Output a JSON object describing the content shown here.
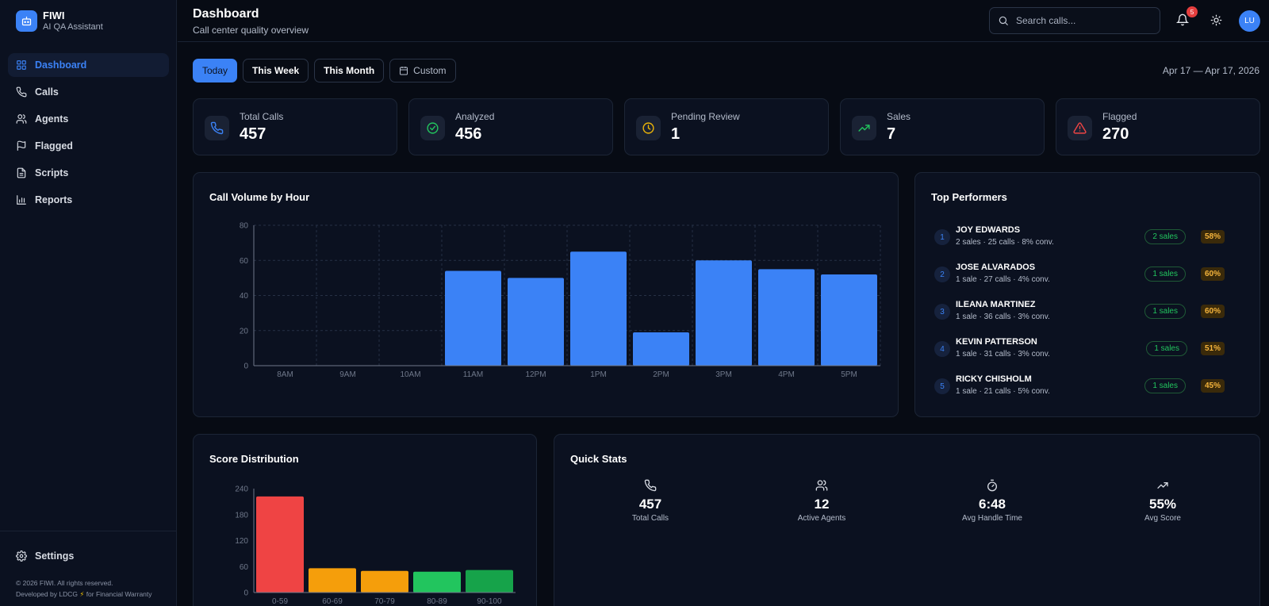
{
  "brand": {
    "name": "FIWI",
    "subtitle": "AI QA Assistant"
  },
  "sidebar": {
    "items": [
      {
        "label": "Dashboard",
        "icon": "grid-icon",
        "active": true
      },
      {
        "label": "Calls",
        "icon": "phone-icon"
      },
      {
        "label": "Agents",
        "icon": "users-icon"
      },
      {
        "label": "Flagged",
        "icon": "flag-icon"
      },
      {
        "label": "Scripts",
        "icon": "document-icon"
      },
      {
        "label": "Reports",
        "icon": "bar-chart-icon"
      }
    ],
    "settings_label": "Settings",
    "footer_copyright": "© 2026 FIWI. All rights reserved.",
    "footer_dev_prefix": "Developed by LDCG",
    "footer_dev_suffix": "for Financial Warranty"
  },
  "header": {
    "title": "Dashboard",
    "subtitle": "Call center quality overview",
    "search_placeholder": "Search calls...",
    "notification_count": "5",
    "avatar_initials": "LU"
  },
  "filters": {
    "buttons": [
      "Today",
      "This Week",
      "This Month",
      "Custom"
    ],
    "active": "Today",
    "date_range": "Apr 17 — Apr 17, 2026"
  },
  "stats": [
    {
      "label": "Total Calls",
      "value": "457",
      "icon": "phone-icon",
      "color": "#3b82f6"
    },
    {
      "label": "Analyzed",
      "value": "456",
      "icon": "check-circle-icon",
      "color": "#22c55e"
    },
    {
      "label": "Pending Review",
      "value": "1",
      "icon": "clock-icon",
      "color": "#eab308"
    },
    {
      "label": "Sales",
      "value": "7",
      "icon": "trending-up-icon",
      "color": "#22c55e"
    },
    {
      "label": "Flagged",
      "value": "270",
      "icon": "alert-triangle-icon",
      "color": "#ef4444"
    }
  ],
  "call_volume": {
    "title": "Call Volume by Hour",
    "chart_data": {
      "type": "bar",
      "categories": [
        "8AM",
        "9AM",
        "10AM",
        "11AM",
        "12PM",
        "1PM",
        "2PM",
        "3PM",
        "4PM",
        "5PM"
      ],
      "values": [
        0,
        0,
        0,
        54,
        50,
        65,
        19,
        60,
        55,
        52
      ],
      "yticks": [
        0,
        20,
        40,
        60,
        80
      ],
      "ylim": [
        0,
        80
      ],
      "grid": true,
      "color": "#3b82f6"
    }
  },
  "top_performers": {
    "title": "Top Performers",
    "rows": [
      {
        "rank": "1",
        "name": "JOY EDWARDS",
        "meta": "2 sales · 25 calls · 8% conv.",
        "sales": "2 sales",
        "pct": "58%"
      },
      {
        "rank": "2",
        "name": "JOSE ALVARADOS",
        "meta": "1 sale · 27 calls · 4% conv.",
        "sales": "1 sales",
        "pct": "60%"
      },
      {
        "rank": "3",
        "name": "ILEANA MARTINEZ",
        "meta": "1 sale · 36 calls · 3% conv.",
        "sales": "1 sales",
        "pct": "60%"
      },
      {
        "rank": "4",
        "name": "KEVIN PATTERSON",
        "meta": "1 sale · 31 calls · 3% conv.",
        "sales": "1 sales",
        "pct": "51%"
      },
      {
        "rank": "5",
        "name": "RICKY CHISHOLM",
        "meta": "1 sale · 21 calls · 5% conv.",
        "sales": "1 sales",
        "pct": "45%"
      }
    ]
  },
  "score_distribution": {
    "title": "Score Distribution",
    "chart_data": {
      "type": "bar",
      "categories": [
        "0-59",
        "60-69",
        "70-79",
        "80-89",
        "90-100"
      ],
      "values": [
        222,
        56,
        50,
        48,
        52
      ],
      "yticks": [
        0,
        60,
        120,
        180,
        240
      ],
      "ylim": [
        0,
        240
      ],
      "colors": [
        "#ef4444",
        "#f59e0b",
        "#f59e0b",
        "#22c55e",
        "#16a34a"
      ]
    }
  },
  "quick_stats": {
    "title": "Quick Stats",
    "items": [
      {
        "value": "457",
        "label": "Total Calls",
        "icon": "phone-icon"
      },
      {
        "value": "12",
        "label": "Active Agents",
        "icon": "users-icon"
      },
      {
        "value": "6:48",
        "label": "Avg Handle Time",
        "icon": "timer-icon"
      },
      {
        "value": "55%",
        "label": "Avg Score",
        "icon": "trending-up-icon"
      }
    ]
  }
}
